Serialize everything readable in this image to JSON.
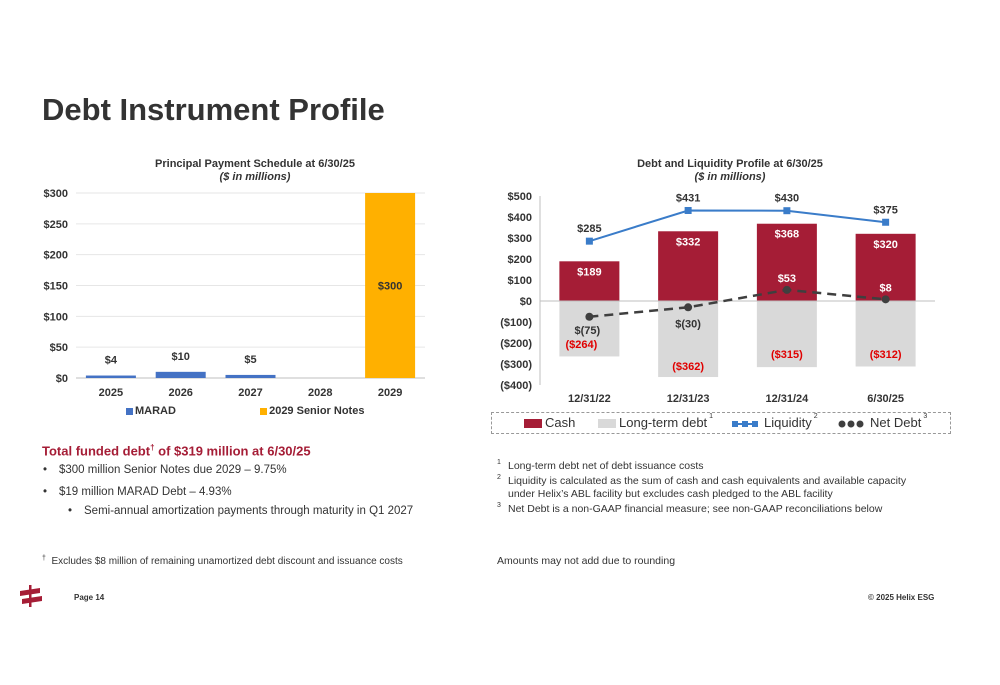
{
  "title": "Debt Instrument Profile",
  "left_chart": {
    "title": "Principal Payment Schedule at 6/30/25",
    "subtitle": "($ in millions)",
    "legend": [
      {
        "label": "MARAD",
        "color": "#4472c4"
      },
      {
        "label": "2029 Senior Notes",
        "color": "#ffb000"
      }
    ]
  },
  "right_chart": {
    "title": "Debt and Liquidity Profile at 6/30/25",
    "subtitle": "($ in millions)",
    "legend": [
      {
        "label": "Cash",
        "sup": "",
        "color": "#a51d36"
      },
      {
        "label": "Long-term debt",
        "sup": "1",
        "color": "#d9d9d9"
      },
      {
        "label": "Liquidity",
        "sup": "2",
        "color": "#3a7cc9"
      },
      {
        "label": "Net Debt",
        "sup": "3",
        "color": "#3f3f3f"
      }
    ]
  },
  "chart_data": [
    {
      "type": "bar",
      "title": "Principal Payment Schedule at 6/30/25",
      "subtitle": "($ in millions)",
      "categories": [
        "2025",
        "2026",
        "2027",
        "2028",
        "2029"
      ],
      "series": [
        {
          "name": "MARAD",
          "color": "#4472c4",
          "values": [
            4,
            10,
            5,
            0,
            0
          ]
        },
        {
          "name": "2029 Senior Notes",
          "color": "#ffb000",
          "values": [
            0,
            0,
            0,
            0,
            300
          ]
        }
      ],
      "data_labels": [
        "$4",
        "$10",
        "$5",
        "",
        "$300"
      ],
      "ylim": [
        0,
        300
      ],
      "yticks": [
        0,
        50,
        100,
        150,
        200,
        250,
        300
      ],
      "ytick_labels": [
        "$0",
        "$50",
        "$100",
        "$150",
        "$200",
        "$250",
        "$300"
      ],
      "grid": true,
      "legend": "bottom"
    },
    {
      "type": "bar",
      "title": "Debt and Liquidity Profile at 6/30/25",
      "subtitle": "($ in millions)",
      "categories": [
        "12/31/22",
        "12/31/23",
        "12/31/24",
        "6/30/25"
      ],
      "series": [
        {
          "name": "Cash",
          "kind": "bar",
          "color": "#a51d36",
          "values": [
            189,
            332,
            368,
            320
          ],
          "labels": [
            "$189",
            "$332",
            "$368",
            "$320"
          ]
        },
        {
          "name": "Long-term debt",
          "kind": "bar",
          "color": "#d9d9d9",
          "values": [
            -264,
            -362,
            -315,
            -312
          ],
          "labels": [
            "($264)",
            "($362)",
            "($315)",
            "($312)"
          ]
        },
        {
          "name": "Liquidity",
          "kind": "line",
          "color": "#3a7cc9",
          "values": [
            285,
            431,
            430,
            375
          ],
          "labels": [
            "$285",
            "$431",
            "$430",
            "$375"
          ]
        },
        {
          "name": "Net Debt",
          "kind": "dashed-line",
          "color": "#3f3f3f",
          "values": [
            -75,
            -30,
            53,
            8
          ],
          "labels": [
            "$(75)",
            "$(30)",
            "$53",
            "$8"
          ]
        }
      ],
      "ylim": [
        -400,
        500
      ],
      "yticks": [
        -400,
        -300,
        -200,
        -100,
        0,
        100,
        200,
        300,
        400,
        500
      ],
      "ytick_labels": [
        "($400)",
        "($300)",
        "($200)",
        "($100)",
        "$0",
        "$100",
        "$200",
        "$300",
        "$400",
        "$500"
      ],
      "grid": false,
      "legend": "bottom"
    }
  ],
  "funded": {
    "heading_pre": "Total funded debt",
    "heading_sup": "†",
    "heading_post": " of $319 million at 6/30/25",
    "bullets": [
      "$300 million Senior Notes due 2029 – 9.75%",
      "$19 million MARAD Debt – 4.93%",
      "Semi-annual amortization payments through maturity in Q1 2027"
    ]
  },
  "footnotes": [
    {
      "num": "1",
      "text": "Long-term debt net of debt issuance costs"
    },
    {
      "num": "2",
      "text": "Liquidity is calculated as the sum of cash and cash equivalents and available capacity",
      "text2": "under Helix’s ABL facility but excludes cash pledged to the ABL facility"
    },
    {
      "num": "3",
      "text": "Net Debt is a non-GAAP financial measure; see non-GAAP reconciliations below"
    }
  ],
  "dagger_note": {
    "sym": "†",
    "text": "Excludes $8 million of remaining unamortized debt discount and issuance costs"
  },
  "rounding_note": "Amounts may not add due to rounding",
  "page_label": "Page 14",
  "copyright": "© 2025 Helix ESG"
}
